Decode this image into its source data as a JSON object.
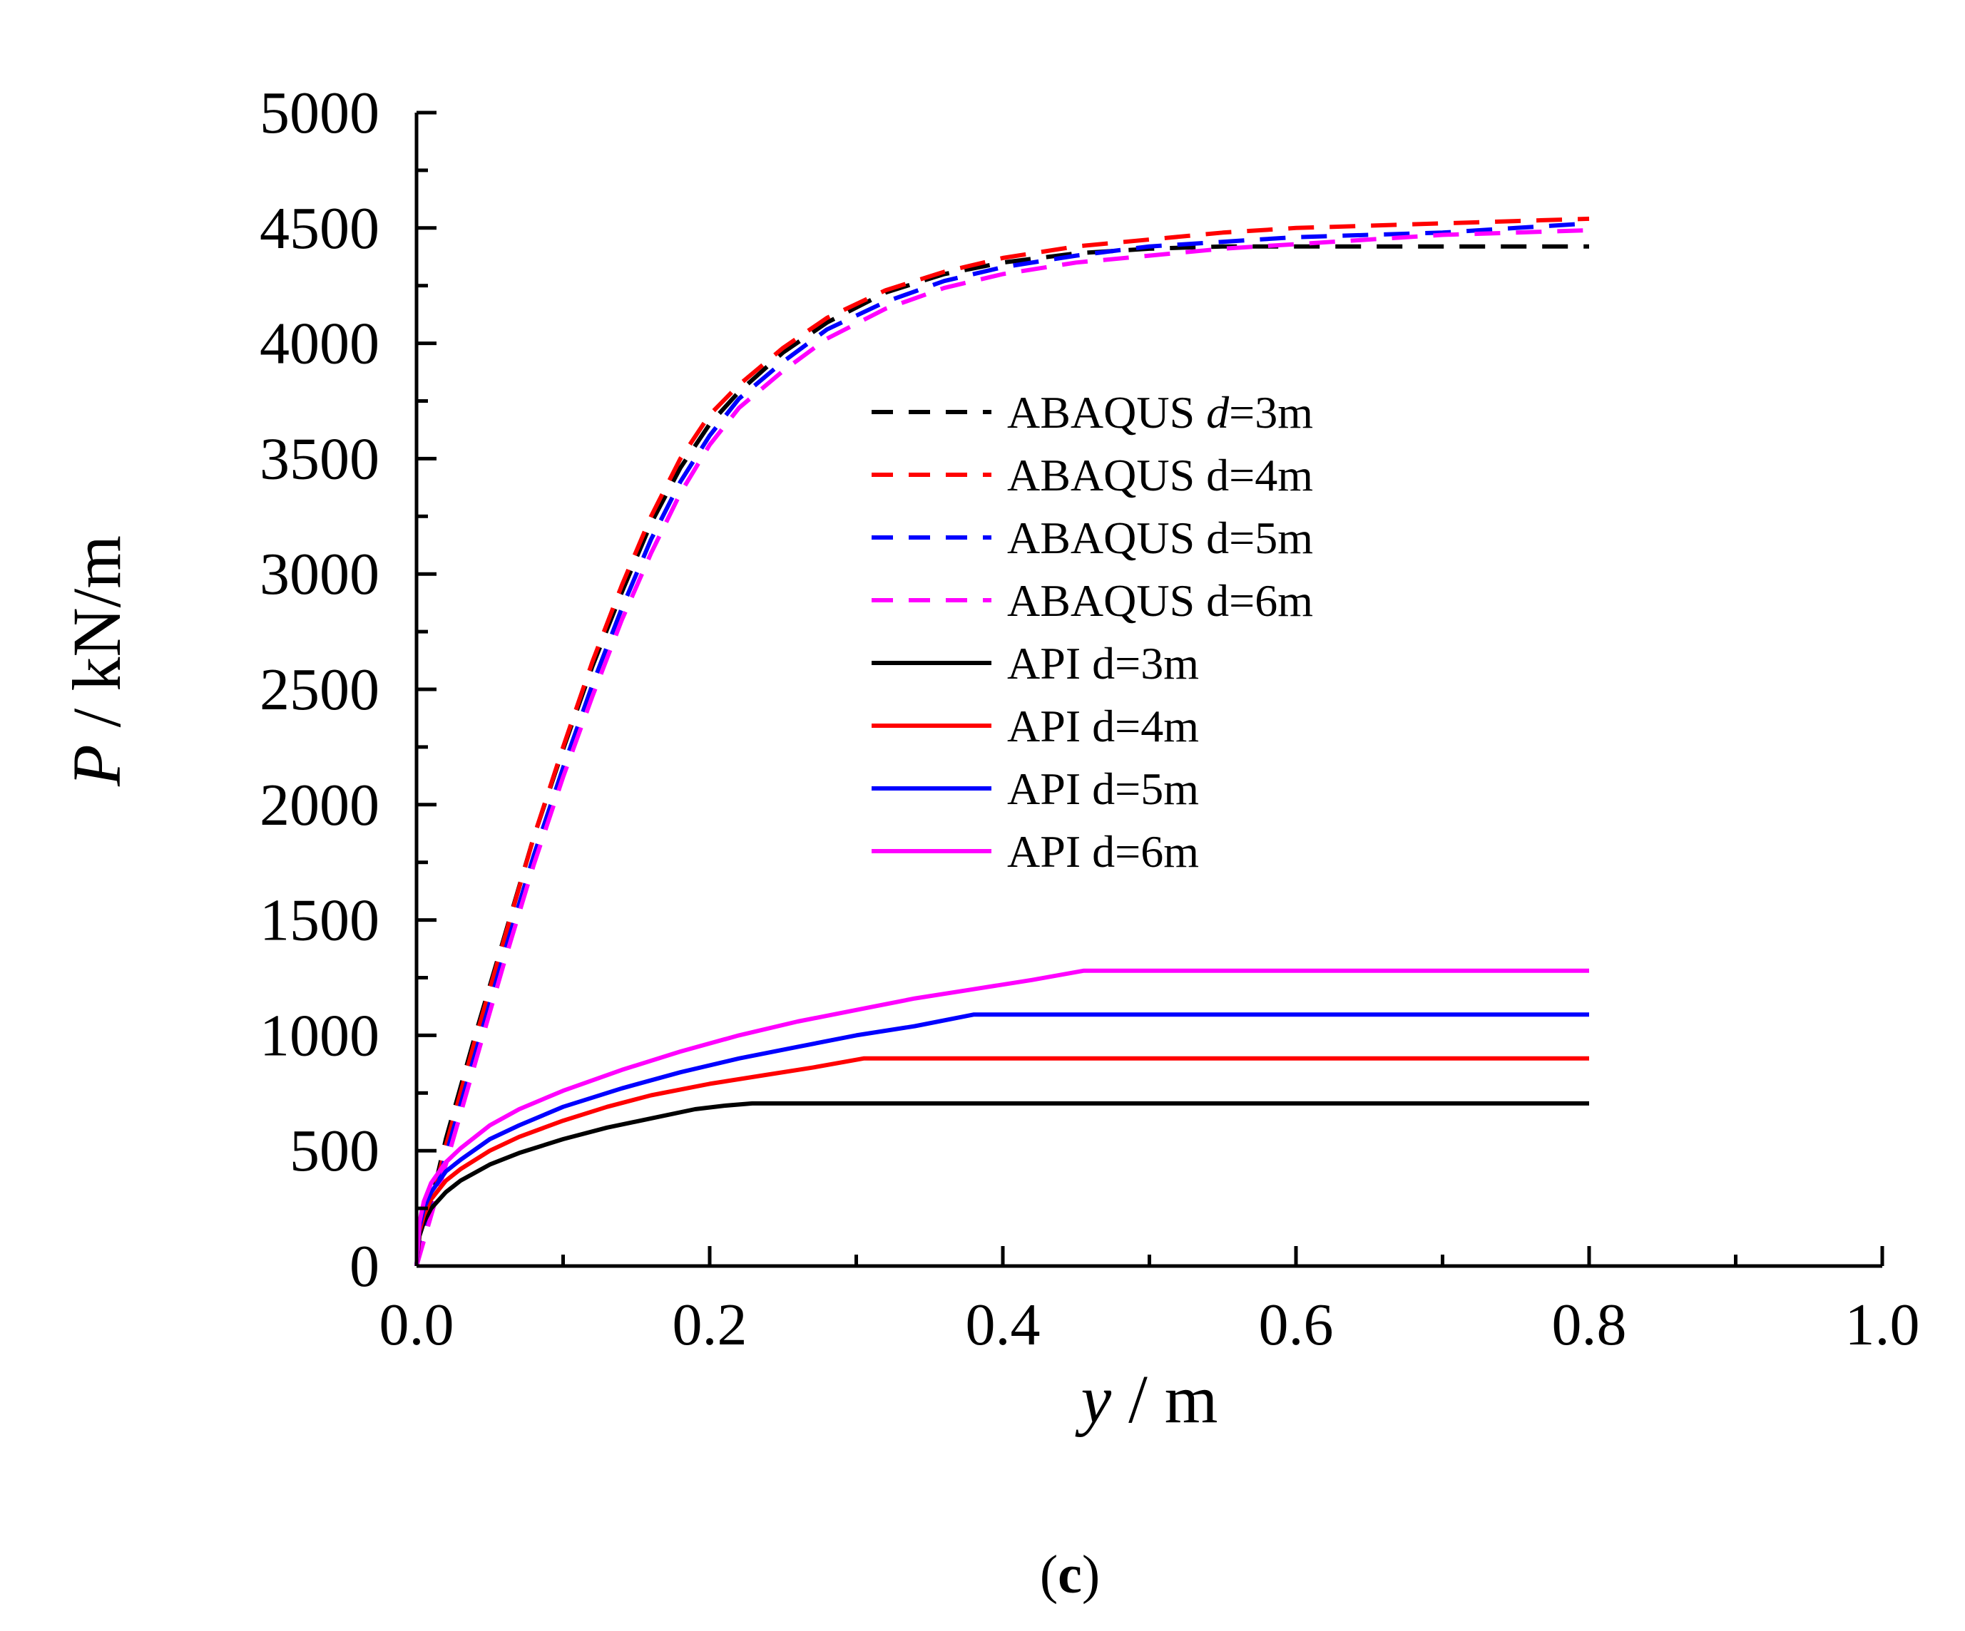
{
  "chart_data": {
    "type": "line",
    "title": "",
    "xlabel": {
      "var": "y",
      "unit": " / m"
    },
    "ylabel": {
      "var": "P",
      "unit": " / kN/m"
    },
    "xlim": [
      0,
      1.0
    ],
    "ylim": [
      0,
      5000
    ],
    "x_ticks": [
      0.0,
      0.2,
      0.4,
      0.6,
      0.8,
      1.0
    ],
    "x_tick_labels": [
      "0.0",
      "0.2",
      "0.4",
      "0.6",
      "0.8",
      "1.0"
    ],
    "y_ticks": [
      0,
      500,
      1000,
      1500,
      2000,
      2500,
      3000,
      3500,
      4000,
      4500,
      5000
    ],
    "y_tick_labels": [
      "0",
      "500",
      "1000",
      "1500",
      "2000",
      "2500",
      "3000",
      "3500",
      "4000",
      "4500",
      "5000"
    ],
    "x_minor_ticks": [
      0.1,
      0.3,
      0.5,
      0.7,
      0.9
    ],
    "y_minor_ticks": [
      250,
      750,
      1250,
      1750,
      2250,
      2750,
      3250,
      3750,
      4250,
      4750
    ],
    "grid": false,
    "legend": {
      "placement": "center",
      "entries": [
        {
          "prefix": "ABAQUS  ",
          "var": "d",
          "suffix": "=3m",
          "color": "#000000",
          "style": "dashed"
        },
        {
          "prefix": "ABAQUS  ",
          "var": "",
          "suffix": "d=4m",
          "color": "#ff0000",
          "style": "dashed"
        },
        {
          "prefix": "ABAQUS  ",
          "var": "",
          "suffix": "d=5m",
          "color": "#0000ff",
          "style": "dashed"
        },
        {
          "prefix": "ABAQUS  ",
          "var": "",
          "suffix": "d=6m",
          "color": "#ff00ff",
          "style": "dashed"
        },
        {
          "prefix": "API d=3m",
          "var": "",
          "suffix": "",
          "color": "#000000",
          "style": "solid"
        },
        {
          "prefix": "API d=4m",
          "var": "",
          "suffix": "",
          "color": "#ff0000",
          "style": "solid"
        },
        {
          "prefix": "API d=5m",
          "var": "",
          "suffix": "",
          "color": "#0000ff",
          "style": "solid"
        },
        {
          "prefix": "API d=6m",
          "var": "",
          "suffix": "",
          "color": "#ff00ff",
          "style": "solid"
        }
      ]
    },
    "series": [
      {
        "name": "ABAQUS d=3m",
        "color": "#000000",
        "style": "dashed",
        "x": [
          0.0,
          0.02,
          0.04,
          0.06,
          0.08,
          0.1,
          0.12,
          0.14,
          0.16,
          0.18,
          0.2,
          0.22,
          0.25,
          0.28,
          0.32,
          0.36,
          0.4,
          0.45,
          0.5,
          0.55,
          0.6,
          0.65,
          0.7,
          0.75,
          0.8
        ],
        "y": [
          0,
          550,
          1000,
          1430,
          1860,
          2240,
          2600,
          2920,
          3220,
          3460,
          3650,
          3790,
          3960,
          4090,
          4220,
          4300,
          4350,
          4390,
          4410,
          4420,
          4420,
          4420,
          4420,
          4420,
          4420
        ]
      },
      {
        "name": "ABAQUS d=4m",
        "color": "#ff0000",
        "style": "dashed",
        "x": [
          0.0,
          0.02,
          0.04,
          0.06,
          0.08,
          0.1,
          0.12,
          0.14,
          0.16,
          0.18,
          0.2,
          0.22,
          0.25,
          0.28,
          0.32,
          0.36,
          0.4,
          0.45,
          0.5,
          0.55,
          0.6,
          0.65,
          0.7,
          0.75,
          0.8
        ],
        "y": [
          0,
          520,
          980,
          1420,
          1860,
          2250,
          2620,
          2950,
          3250,
          3500,
          3690,
          3820,
          3980,
          4110,
          4230,
          4310,
          4370,
          4420,
          4450,
          4480,
          4500,
          4510,
          4520,
          4530,
          4540
        ]
      },
      {
        "name": "ABAQUS d=5m",
        "color": "#0000ff",
        "style": "dashed",
        "x": [
          0.0,
          0.02,
          0.04,
          0.06,
          0.08,
          0.1,
          0.12,
          0.14,
          0.16,
          0.18,
          0.2,
          0.22,
          0.25,
          0.28,
          0.32,
          0.36,
          0.4,
          0.45,
          0.5,
          0.55,
          0.6,
          0.65,
          0.7,
          0.75,
          0.8
        ],
        "y": [
          0,
          480,
          920,
          1360,
          1780,
          2160,
          2520,
          2850,
          3150,
          3400,
          3600,
          3760,
          3920,
          4060,
          4180,
          4270,
          4330,
          4380,
          4420,
          4440,
          4460,
          4470,
          4480,
          4500,
          4520
        ]
      },
      {
        "name": "ABAQUS d=6m",
        "color": "#ff00ff",
        "style": "dashed",
        "x": [
          0.0,
          0.02,
          0.04,
          0.06,
          0.08,
          0.1,
          0.12,
          0.14,
          0.16,
          0.18,
          0.2,
          0.22,
          0.25,
          0.28,
          0.32,
          0.36,
          0.4,
          0.45,
          0.5,
          0.55,
          0.6,
          0.65,
          0.7,
          0.75,
          0.8
        ],
        "y": [
          0,
          440,
          880,
          1320,
          1740,
          2120,
          2470,
          2800,
          3090,
          3350,
          3560,
          3720,
          3880,
          4020,
          4150,
          4240,
          4300,
          4350,
          4380,
          4410,
          4430,
          4450,
          4470,
          4480,
          4490
        ]
      },
      {
        "name": "API d=3m",
        "color": "#000000",
        "style": "solid",
        "x": [
          0.0,
          0.002,
          0.005,
          0.01,
          0.02,
          0.03,
          0.05,
          0.07,
          0.1,
          0.13,
          0.16,
          0.19,
          0.21,
          0.229,
          0.3,
          0.4,
          0.5,
          0.6,
          0.7,
          0.8
        ],
        "y": [
          0,
          130,
          190,
          250,
          320,
          370,
          440,
          490,
          550,
          600,
          640,
          680,
          695,
          705,
          705,
          705,
          705,
          705,
          705,
          705
        ]
      },
      {
        "name": "API d=4m",
        "color": "#ff0000",
        "style": "solid",
        "x": [
          0.0,
          0.002,
          0.005,
          0.01,
          0.02,
          0.03,
          0.05,
          0.07,
          0.1,
          0.13,
          0.16,
          0.2,
          0.24,
          0.27,
          0.305,
          0.4,
          0.5,
          0.6,
          0.7,
          0.8
        ],
        "y": [
          0,
          150,
          220,
          290,
          370,
          420,
          500,
          560,
          630,
          690,
          740,
          790,
          830,
          860,
          900,
          900,
          900,
          900,
          900,
          900
        ]
      },
      {
        "name": "API d=5m",
        "color": "#0000ff",
        "style": "solid",
        "x": [
          0.0,
          0.002,
          0.005,
          0.01,
          0.02,
          0.03,
          0.05,
          0.07,
          0.1,
          0.14,
          0.18,
          0.22,
          0.26,
          0.3,
          0.34,
          0.38,
          0.5,
          0.6,
          0.7,
          0.8
        ],
        "y": [
          0,
          170,
          250,
          320,
          410,
          460,
          550,
          610,
          690,
          770,
          840,
          900,
          950,
          1000,
          1040,
          1090,
          1090,
          1090,
          1090,
          1090
        ]
      },
      {
        "name": "API d=6m",
        "color": "#ff00ff",
        "style": "solid",
        "x": [
          0.0,
          0.002,
          0.005,
          0.01,
          0.02,
          0.03,
          0.05,
          0.07,
          0.1,
          0.14,
          0.18,
          0.22,
          0.26,
          0.3,
          0.34,
          0.38,
          0.42,
          0.455,
          0.6,
          0.7,
          0.8
        ],
        "y": [
          0,
          190,
          280,
          360,
          450,
          510,
          610,
          680,
          760,
          850,
          930,
          1000,
          1060,
          1110,
          1160,
          1200,
          1240,
          1280,
          1280,
          1280,
          1280
        ]
      }
    ]
  },
  "caption": {
    "open": "(",
    "letter": "c",
    "close": ")"
  }
}
